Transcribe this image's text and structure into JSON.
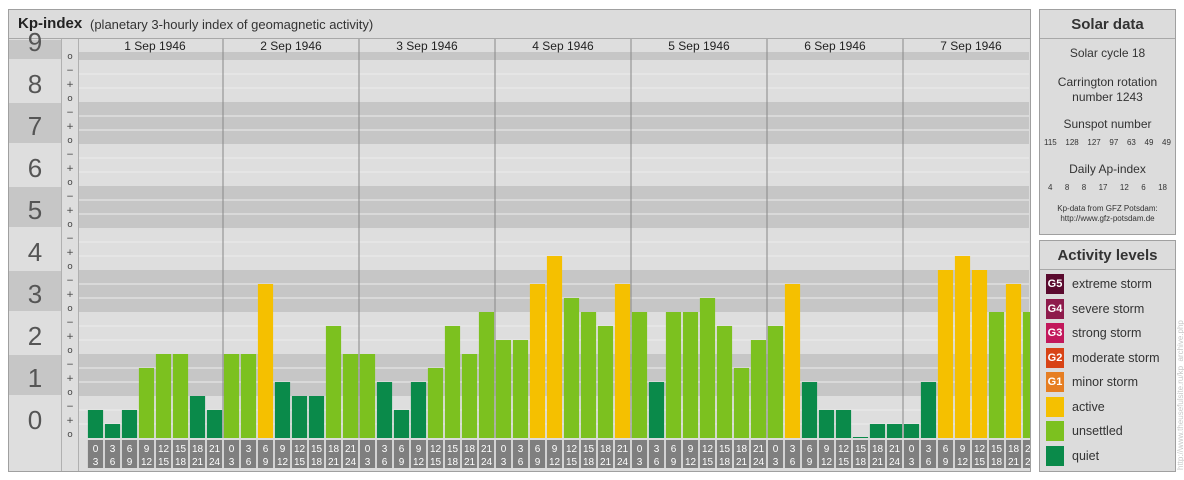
{
  "header": {
    "title": "Kp-index",
    "subtitle": "(planetary 3-hourly index of geomagnetic activity)"
  },
  "chart_data": {
    "type": "bar",
    "title": "Kp-index",
    "subtitle": "(planetary 3-hourly index of geomagnetic activity)",
    "y_ticks": [
      "0",
      "1",
      "2",
      "3",
      "4",
      "5",
      "6",
      "7",
      "8",
      "9"
    ],
    "minor_labels": [
      "o",
      "+",
      "−"
    ],
    "ylim": [
      0,
      9.333
    ],
    "days": [
      "1 Sep 1946",
      "2 Sep 1946",
      "3 Sep 1946",
      "4 Sep 1946",
      "5 Sep 1946",
      "6 Sep 1946",
      "7 Sep 1946"
    ],
    "slot_labels": [
      [
        "0",
        "3"
      ],
      [
        "3",
        "6"
      ],
      [
        "6",
        "9"
      ],
      [
        "9",
        "12"
      ],
      [
        "12",
        "15"
      ],
      [
        "15",
        "18"
      ],
      [
        "18",
        "21"
      ],
      [
        "21",
        "24"
      ]
    ],
    "values": [
      [
        0.667,
        0.333,
        0.667,
        1.667,
        2.0,
        2.0,
        1.0,
        0.667
      ],
      [
        2.0,
        2.0,
        3.667,
        1.333,
        1.0,
        1.0,
        2.667,
        2.0
      ],
      [
        2.0,
        1.333,
        0.667,
        1.333,
        1.667,
        2.667,
        2.0,
        3.0
      ],
      [
        2.333,
        2.333,
        3.667,
        4.333,
        3.333,
        3.0,
        2.667,
        3.667
      ],
      [
        3.0,
        1.333,
        3.0,
        3.0,
        3.333,
        2.667,
        1.667,
        2.333
      ],
      [
        2.667,
        3.667,
        1.333,
        0.667,
        0.667,
        0.0,
        0.333,
        0.333
      ],
      [
        0.333,
        1.333,
        4.0,
        4.333,
        4.0,
        3.0,
        3.667,
        3.0
      ]
    ],
    "grid": true,
    "legend_position": "right"
  },
  "solar": {
    "title": "Solar data",
    "cycle": "Solar cycle 18",
    "carrington_line1": "Carrington rotation",
    "carrington_line2": "number 1243",
    "sunspot_label": "Sunspot number",
    "sunspot_values": [
      "115",
      "128",
      "127",
      "97",
      "63",
      "49",
      "49"
    ],
    "ap_label": "Daily Ap-index",
    "ap_values": [
      "4",
      "8",
      "8",
      "17",
      "12",
      "6",
      "18"
    ],
    "credit_line1": "Kp-data from GFZ Potsdam:",
    "credit_line2": "http://www.gfz-potsdam.de"
  },
  "activity": {
    "title": "Activity levels",
    "levels": [
      {
        "code": "G5",
        "label": "extreme storm",
        "color": "#5a0a2e"
      },
      {
        "code": "G4",
        "label": "severe storm",
        "color": "#8e1b4c"
      },
      {
        "code": "G3",
        "label": "strong storm",
        "color": "#c2185b"
      },
      {
        "code": "G2",
        "label": "moderate storm",
        "color": "#d84315"
      },
      {
        "code": "G1",
        "label": "minor storm",
        "color": "#e67e22"
      },
      {
        "code": "",
        "label": "active",
        "color": "#f5c000"
      },
      {
        "code": "",
        "label": "unsettled",
        "color": "#7cc11f"
      },
      {
        "code": "",
        "label": "quiet",
        "color": "#0a8a4a"
      }
    ]
  },
  "colors": {
    "quiet": "#0a8a4a",
    "unsettled": "#7cc11f",
    "active": "#f5c000",
    "band_dark": "#c6c6c6",
    "band_light": "#dedede",
    "slot_box": "#7f7f7f"
  },
  "watermark": "http://www.theusefulsite.ru/kp_archive.php"
}
